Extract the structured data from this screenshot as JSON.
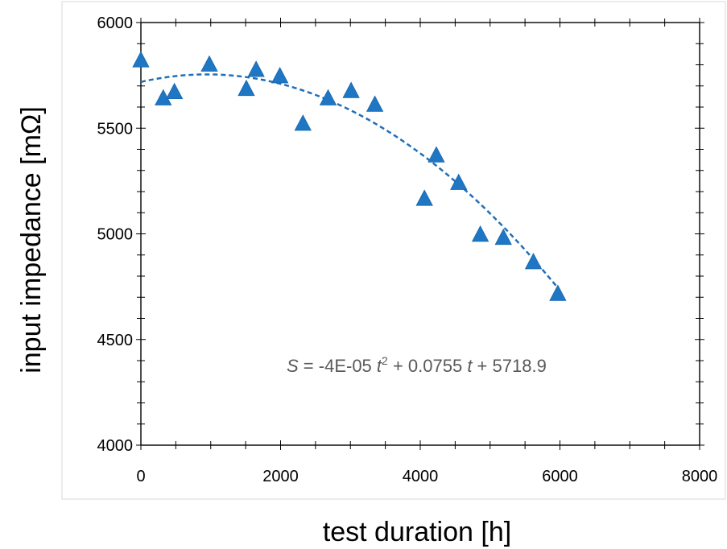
{
  "chart_data": {
    "type": "scatter",
    "xlabel": "test duration [h]",
    "ylabel": "input impedance [mΩ]",
    "xlim": [
      0,
      8000
    ],
    "ylim": [
      4000,
      6000
    ],
    "xticks": [
      0,
      2000,
      4000,
      6000,
      8000
    ],
    "yticks": [
      4000,
      4500,
      5000,
      5500,
      6000
    ],
    "x_tick_labels": [
      "0",
      "2000",
      "4000",
      "6000",
      "8000"
    ],
    "y_tick_labels": [
      "4000",
      "4500",
      "5000",
      "5500",
      "6000"
    ],
    "grid": false,
    "marker_color": "#1F77C4",
    "series": [
      {
        "marker": "triangle",
        "points": [
          {
            "x": 0,
            "y": 5820
          },
          {
            "x": 320,
            "y": 5640
          },
          {
            "x": 480,
            "y": 5670
          },
          {
            "x": 980,
            "y": 5800
          },
          {
            "x": 1510,
            "y": 5685
          },
          {
            "x": 1650,
            "y": 5775
          },
          {
            "x": 1990,
            "y": 5745
          },
          {
            "x": 2320,
            "y": 5520
          },
          {
            "x": 2680,
            "y": 5640
          },
          {
            "x": 3010,
            "y": 5675
          },
          {
            "x": 3350,
            "y": 5610
          },
          {
            "x": 4060,
            "y": 5165
          },
          {
            "x": 4230,
            "y": 5370
          },
          {
            "x": 4550,
            "y": 5240
          },
          {
            "x": 4860,
            "y": 4995
          },
          {
            "x": 5190,
            "y": 4980
          },
          {
            "x": 5620,
            "y": 4865
          },
          {
            "x": 5970,
            "y": 4715
          }
        ]
      }
    ],
    "trendline": {
      "type": "polynomial",
      "coefficients": {
        "a": -4e-05,
        "b": 0.0755,
        "c": 5718.9
      },
      "x_range": [
        0,
        6000
      ],
      "style": "dashed",
      "color": "#1F6FB8"
    },
    "annotation": {
      "var_s": "S",
      "part1": " = -4E-05 ",
      "var_t1": "t",
      "sup": "2",
      "part2": " + 0.0755 ",
      "var_t2": "t",
      "part3": " + 5718.9"
    }
  }
}
